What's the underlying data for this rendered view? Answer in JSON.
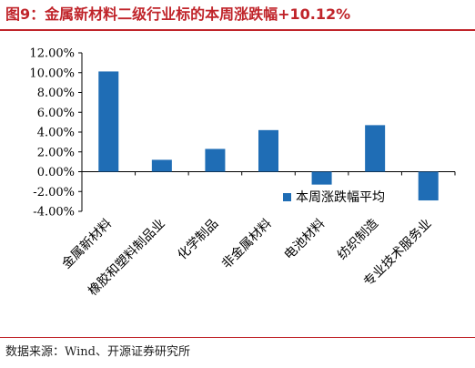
{
  "title": "图9：金属新材料二级行业标的本周涨跌幅+10.12%",
  "source": "数据来源：Wind、开源证券研究所",
  "colors": {
    "title": "#c0242a",
    "bar": "#1f6db5"
  },
  "chart_data": {
    "type": "bar",
    "categories": [
      "金属新材料",
      "橡胶和塑料制品业",
      "化学制品",
      "非金属材料",
      "电池材料",
      "纺织制造",
      "专业技术服务业"
    ],
    "series": [
      {
        "name": "本周涨跌幅平均",
        "values": [
          10.12,
          1.2,
          2.3,
          4.2,
          -1.3,
          4.7,
          -2.9
        ]
      }
    ],
    "ylim": [
      -4,
      12
    ],
    "yticks": [
      -4,
      -2,
      0,
      2,
      4,
      6,
      8,
      10,
      12
    ],
    "ytick_labels": [
      "-4.00%",
      "-2.00%",
      "0.00%",
      "2.00%",
      "4.00%",
      "6.00%",
      "8.00%",
      "10.00%",
      "12.00%"
    ],
    "legend": "本周涨跌幅平均",
    "legend_position": "lower-right",
    "grid": false
  }
}
